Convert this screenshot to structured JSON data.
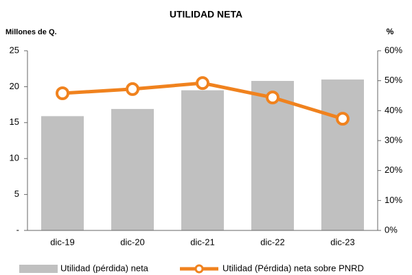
{
  "chart_data": {
    "type": "bar",
    "title": "UTILIDAD NETA",
    "y_label": "Millones de Q.",
    "y2_label": "%",
    "categories": [
      "dic-19",
      "dic-20",
      "dic-21",
      "dic-22",
      "dic-23"
    ],
    "series": [
      {
        "name": "Utilidad (pérdida) neta",
        "color": "#c0c0c0",
        "values": [
          15.9,
          16.9,
          19.5,
          20.8,
          21.0
        ]
      },
      {
        "name": "Utilidad (Pérdida) neta sobre PNRD",
        "color": "#f0821e",
        "type": "line",
        "axis": "y2",
        "values": [
          45.8,
          47.2,
          49.2,
          44.4,
          37.3
        ]
      }
    ],
    "ylim": [
      0,
      25
    ],
    "yticks": [
      {
        "value": 0,
        "label": "-"
      },
      5,
      10,
      15,
      20,
      25
    ],
    "y2lim": [
      0,
      60
    ],
    "y2ticks": [
      {
        "value": 0,
        "label": "0%"
      },
      {
        "value": 10,
        "label": "10%"
      },
      {
        "value": 20,
        "label": "20%"
      },
      {
        "value": 30,
        "label": "30%"
      },
      {
        "value": 40,
        "label": "40%"
      },
      {
        "value": 50,
        "label": "50%"
      },
      {
        "value": 60,
        "label": "60%"
      }
    ],
    "grid": false
  }
}
